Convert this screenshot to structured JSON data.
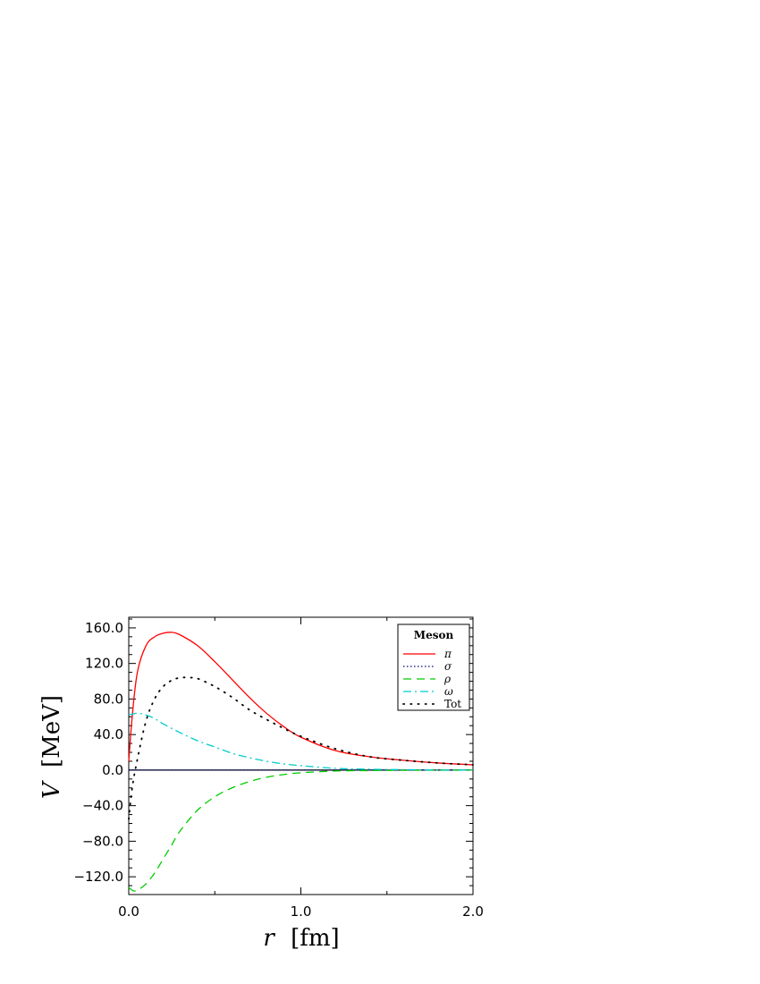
{
  "chart_data": {
    "type": "line",
    "xlabel": "r [fm]",
    "xlabel_var": "r",
    "xlabel_unit": "[fm]",
    "ylabel": "V [MeV]",
    "ylabel_var": "V",
    "ylabel_unit": "[MeV]",
    "xlim": [
      0.0,
      2.0
    ],
    "ylim": [
      -140,
      172
    ],
    "x_ticks": [
      {
        "value": 0.0,
        "label": "0.0"
      },
      {
        "value": 1.0,
        "label": "1.0"
      },
      {
        "value": 2.0,
        "label": "2.0"
      }
    ],
    "y_ticks": [
      {
        "value": 160,
        "label": "160.0"
      },
      {
        "value": 120,
        "label": "120.0"
      },
      {
        "value": 80,
        "label": "80.0"
      },
      {
        "value": 40,
        "label": "40.0"
      },
      {
        "value": 0,
        "label": "0.0"
      },
      {
        "value": -40,
        "label": "−40.0"
      },
      {
        "value": -80,
        "label": "−80.0"
      },
      {
        "value": -120,
        "label": "−120.0"
      }
    ],
    "grid": false,
    "legend": {
      "title": "Meson",
      "placement": "top-right"
    },
    "series": [
      {
        "name": "π",
        "color": "#ff0000",
        "style": "solid",
        "x": [
          0.0,
          0.02,
          0.05,
          0.1,
          0.15,
          0.2,
          0.25,
          0.3,
          0.4,
          0.5,
          0.6,
          0.7,
          0.8,
          0.9,
          1.0,
          1.2,
          1.4,
          1.6,
          1.8,
          2.0
        ],
        "y": [
          10,
          60,
          110,
          140,
          150,
          154,
          155,
          152,
          140,
          122,
          102,
          82,
          64,
          49,
          37,
          22,
          15,
          11,
          8,
          6
        ]
      },
      {
        "name": "σ",
        "color": "#000080",
        "style": "dotted",
        "x": [
          0.0,
          0.2,
          0.4,
          0.6,
          0.8,
          1.0,
          1.2,
          1.4,
          1.6,
          1.8,
          2.0
        ],
        "y": [
          0,
          0,
          0,
          0,
          0,
          0,
          0,
          0,
          0,
          0,
          0
        ]
      },
      {
        "name": "ρ",
        "color": "#00cc00",
        "style": "dashed",
        "x": [
          0.0,
          0.03,
          0.06,
          0.1,
          0.15,
          0.2,
          0.25,
          0.3,
          0.4,
          0.5,
          0.6,
          0.7,
          0.8,
          0.9,
          1.0,
          1.2,
          1.4,
          1.6,
          1.8,
          2.0
        ],
        "y": [
          -132,
          -136,
          -134,
          -128,
          -116,
          -100,
          -84,
          -68,
          -45,
          -30,
          -20,
          -13,
          -8,
          -5,
          -3,
          -1,
          -0.5,
          -0.2,
          -0.1,
          0
        ]
      },
      {
        "name": "ω",
        "color": "#00cccc",
        "style": "dashdot",
        "x": [
          0.0,
          0.05,
          0.1,
          0.15,
          0.2,
          0.3,
          0.4,
          0.5,
          0.6,
          0.7,
          0.8,
          0.9,
          1.0,
          1.2,
          1.4,
          1.6,
          1.8,
          2.0
        ],
        "y": [
          62,
          64,
          62,
          58,
          52,
          42,
          33,
          26,
          19,
          14,
          10,
          7,
          5,
          2,
          1,
          0.5,
          0.2,
          0
        ]
      },
      {
        "name": "Tot",
        "color": "#000000",
        "style": "dotted-sparse",
        "x": [
          0.0,
          0.02,
          0.05,
          0.1,
          0.15,
          0.2,
          0.25,
          0.3,
          0.35,
          0.4,
          0.5,
          0.6,
          0.7,
          0.8,
          0.9,
          1.0,
          1.2,
          1.4,
          1.6,
          1.8,
          2.0
        ],
        "y": [
          -55,
          -20,
          12,
          55,
          80,
          94,
          101,
          104,
          104,
          103,
          94,
          82,
          68,
          57,
          47,
          38,
          24,
          15,
          11,
          8,
          6
        ]
      }
    ]
  }
}
